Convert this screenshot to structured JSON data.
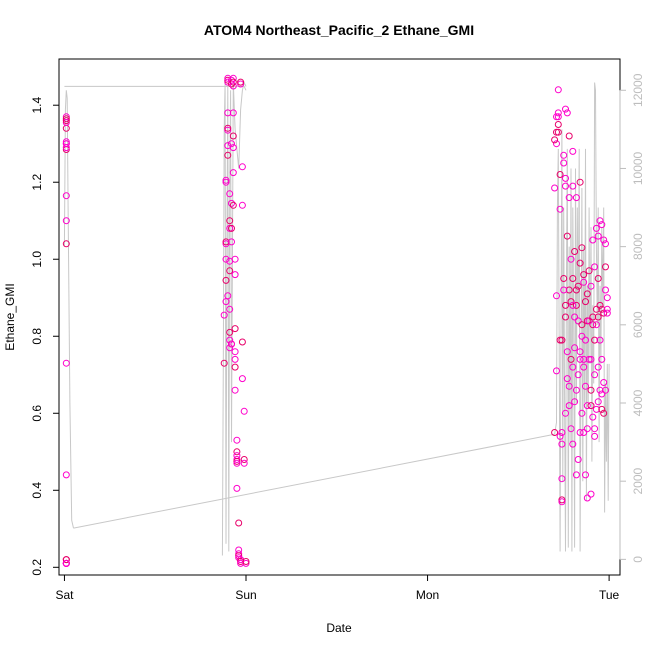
{
  "chart_data": {
    "type": "scatter",
    "title": "ATOM4 Northeast_Pacific_2 Ethane_GMI",
    "xlabel": "Date",
    "ylabel": "Ethane_GMI",
    "x_ticks": [
      {
        "label": "Sat",
        "day": 0
      },
      {
        "label": "Sun",
        "day": 1
      },
      {
        "label": "Mon",
        "day": 2
      },
      {
        "label": "Tue",
        "day": 3
      }
    ],
    "xlim_days": [
      -0.03,
      3.06
    ],
    "ylim": [
      0.18,
      1.52
    ],
    "y_ticks": [
      0.2,
      0.4,
      0.6,
      0.8,
      1.0,
      1.2,
      1.4
    ],
    "y_tick_labels": [
      "0.2",
      "0.4",
      "0.6",
      "0.8",
      "1.0",
      "1.2",
      "1.4"
    ],
    "y2lim": [
      -400,
      12800
    ],
    "y2_ticks": [
      0,
      2000,
      4000,
      6000,
      8000,
      10000,
      12000
    ],
    "y2_tick_labels": [
      "0",
      "2000",
      "4000",
      "6000",
      "8000",
      "10000",
      "12000"
    ],
    "grid": false,
    "colors": {
      "points": "#ff00cc",
      "points_alt": "#e8006a",
      "altitude_line": "#c8c8c8",
      "axis": "#000000",
      "right_axis": "#bdbdbd"
    },
    "series": [
      {
        "kind": "points",
        "x_days": [
          0.01,
          0.01,
          0.01,
          0.01,
          0.01,
          0.01,
          0.01,
          0.01,
          0.01,
          0.01,
          0.01,
          0.01,
          0.01,
          0.01,
          0.01,
          0.01,
          0.01,
          0.01,
          0.01,
          0.01,
          0.01,
          0.01,
          0.01,
          0.01
        ],
        "y": [
          0.21,
          0.21,
          0.21,
          0.22,
          0.44,
          0.73,
          1.04,
          1.1,
          1.165,
          1.285,
          1.3,
          1.305,
          1.34,
          1.355,
          1.37,
          1.365,
          0.21,
          0.21,
          0.22,
          1.3,
          1.29,
          1.36,
          0.21,
          0.21
        ]
      },
      {
        "kind": "points",
        "x_days": [
          0.88,
          0.88,
          0.89,
          0.89,
          0.89,
          0.89,
          0.89,
          0.89,
          0.89,
          0.9,
          0.9,
          0.9,
          0.9,
          0.9,
          0.9,
          0.9,
          0.9,
          0.9,
          0.91,
          0.91,
          0.91,
          0.91,
          0.91,
          0.91,
          0.91,
          0.91,
          0.91,
          0.92,
          0.92,
          0.92,
          0.92,
          0.92,
          0.92,
          0.92,
          0.92,
          0.93,
          0.93,
          0.93,
          0.93,
          0.93,
          0.93,
          0.93,
          0.93,
          0.94,
          0.94,
          0.94,
          0.94,
          0.94,
          0.94,
          0.94,
          0.95,
          0.95,
          0.95,
          0.95,
          0.95,
          0.95,
          0.95,
          0.96,
          0.96,
          0.96,
          0.96,
          0.96,
          0.97,
          0.97,
          0.97,
          0.97,
          0.97,
          0.98,
          0.98,
          0.98,
          0.98,
          0.99,
          0.99,
          0.99,
          1.0,
          1.0
        ],
        "y": [
          0.73,
          0.855,
          0.89,
          0.945,
          1.0,
          1.04,
          1.045,
          1.2,
          1.205,
          1.27,
          1.295,
          1.335,
          1.34,
          1.38,
          1.46,
          1.465,
          1.47,
          0.905,
          0.97,
          0.995,
          1.08,
          1.1,
          1.17,
          0.87,
          0.81,
          0.79,
          0.77,
          0.78,
          0.78,
          1.045,
          1.08,
          1.145,
          1.3,
          1.455,
          1.465,
          1.47,
          1.46,
          1.45,
          1.38,
          1.32,
          1.29,
          1.225,
          1.14,
          1.0,
          0.96,
          0.82,
          0.76,
          0.74,
          0.72,
          0.66,
          0.53,
          0.5,
          0.49,
          0.48,
          0.475,
          0.47,
          0.405,
          0.315,
          0.245,
          0.235,
          0.23,
          0.225,
          0.22,
          0.215,
          0.21,
          1.455,
          1.46,
          1.24,
          1.14,
          0.785,
          0.69,
          0.605,
          0.48,
          0.47,
          0.21,
          0.215
        ]
      },
      {
        "kind": "points",
        "x_days": [
          2.7,
          2.7,
          2.71,
          2.71,
          2.71,
          2.71,
          2.72,
          2.72,
          2.72,
          2.73,
          2.73,
          2.73,
          2.74,
          2.74,
          2.74,
          2.74,
          2.75,
          2.75,
          2.75,
          2.76,
          2.76,
          2.76,
          2.76,
          2.77,
          2.77,
          2.77,
          2.78,
          2.78,
          2.78,
          2.79,
          2.79,
          2.79,
          2.8,
          2.8,
          2.8,
          2.8,
          2.81,
          2.81,
          2.81,
          2.82,
          2.82,
          2.82,
          2.83,
          2.83,
          2.83,
          2.84,
          2.84,
          2.84,
          2.85,
          2.85,
          2.85,
          2.86,
          2.86,
          2.86,
          2.87,
          2.87,
          2.87,
          2.88,
          2.88,
          2.88,
          2.89,
          2.89,
          2.9,
          2.9,
          2.9,
          2.91,
          2.91,
          2.91,
          2.92,
          2.92,
          2.92,
          2.93,
          2.93,
          2.93,
          2.94,
          2.94,
          2.94,
          2.95,
          2.95,
          2.95,
          2.96,
          2.96,
          2.96,
          2.97,
          2.97,
          2.97,
          2.98,
          2.98,
          2.99,
          2.99,
          2.7,
          2.71,
          2.72,
          2.73,
          2.74,
          2.75,
          2.76,
          2.77,
          2.78,
          2.79,
          2.8,
          2.81,
          2.82,
          2.83,
          2.84,
          2.85,
          2.86,
          2.87,
          2.88,
          2.89,
          2.9,
          2.91,
          2.92,
          2.93,
          2.94,
          2.95,
          2.96,
          2.97,
          2.98,
          2.99,
          2.72,
          2.74,
          2.76,
          2.78,
          2.8,
          2.82,
          2.84,
          2.86,
          2.88,
          2.9,
          2.92,
          2.94,
          2.96,
          2.98
        ],
        "y": [
          0.55,
          1.185,
          1.3,
          1.33,
          0.905,
          0.71,
          1.33,
          1.38,
          1.44,
          1.22,
          1.13,
          0.54,
          0.79,
          0.52,
          0.43,
          0.375,
          1.27,
          1.25,
          0.95,
          1.19,
          1.21,
          0.85,
          0.6,
          1.38,
          1.06,
          0.69,
          1.16,
          0.92,
          0.62,
          1.0,
          0.74,
          0.56,
          1.19,
          0.95,
          0.72,
          0.52,
          1.02,
          0.85,
          0.63,
          0.88,
          0.66,
          0.44,
          0.93,
          0.7,
          0.48,
          0.99,
          0.76,
          0.55,
          1.03,
          0.8,
          0.6,
          0.96,
          0.72,
          0.55,
          0.89,
          0.67,
          0.44,
          0.84,
          0.62,
          0.38,
          0.97,
          0.74,
          0.93,
          0.66,
          0.39,
          1.05,
          0.83,
          0.59,
          0.98,
          0.79,
          0.56,
          1.08,
          0.87,
          0.61,
          1.06,
          0.85,
          0.63,
          1.1,
          0.88,
          0.66,
          1.09,
          0.87,
          0.65,
          1.05,
          0.86,
          0.68,
          1.04,
          0.98,
          0.87,
          0.86,
          1.31,
          1.37,
          1.37,
          0.79,
          0.55,
          0.92,
          0.88,
          0.76,
          0.67,
          0.89,
          0.88,
          0.77,
          0.92,
          0.84,
          0.74,
          0.83,
          0.74,
          0.79,
          0.91,
          0.84,
          0.74,
          0.85,
          0.7,
          0.83,
          0.95,
          0.79,
          0.74,
          0.6,
          0.92,
          0.9,
          1.35,
          0.37,
          1.39,
          1.32,
          1.28,
          1.16,
          1.2,
          0.94,
          0.56,
          0.62,
          0.54,
          0.72,
          0.61,
          0.66
        ]
      }
    ],
    "altitude_series": {
      "name": "",
      "axis": "right",
      "segments": [
        {
          "x_days": [
            0.0,
            0.005,
            0.01,
            0.015,
            0.02,
            0.03,
            0.04,
            0.05
          ],
          "y2": [
            8000,
            11500,
            12000,
            11800,
            9000,
            4000,
            1000,
            800
          ]
        },
        {
          "x_days": [
            0.0,
            0.99,
            1.0
          ],
          "y2": [
            12100,
            12100,
            12000
          ]
        },
        {
          "x_days": [
            0.05,
            2.7
          ],
          "y2": [
            800,
            3200
          ]
        },
        {
          "x_days": [
            0.87,
            0.875,
            0.88,
            0.885,
            0.89,
            0.895,
            0.9,
            0.905,
            0.91,
            0.915,
            0.92,
            0.93,
            0.94,
            0.95,
            0.96,
            0.97,
            0.98,
            0.99,
            1.0
          ],
          "y2": [
            100,
            5000,
            11000,
            12200,
            400,
            8000,
            12100,
            200,
            9500,
            12000,
            3000,
            12200,
            11000,
            10500,
            10000,
            11500,
            12000,
            12200,
            12100
          ]
        },
        {
          "x_days": [
            2.7,
            2.71,
            2.715,
            2.72,
            2.73,
            2.735,
            2.74,
            2.745,
            2.75,
            2.755,
            2.76,
            2.765,
            2.77,
            2.775,
            2.78,
            2.785,
            2.79,
            2.795,
            2.8,
            2.805,
            2.81,
            2.815,
            2.82,
            2.825,
            2.83,
            2.835,
            2.84,
            2.845,
            2.85,
            2.855,
            2.86,
            2.865,
            2.87,
            2.875,
            2.88,
            2.885,
            2.89,
            2.895,
            2.9,
            2.905,
            2.91,
            2.915,
            2.92,
            2.925,
            2.93,
            2.935,
            2.94,
            2.945,
            2.95,
            2.955,
            2.96,
            2.965,
            2.97,
            2.975,
            2.98,
            2.985,
            2.99,
            2.995,
            3.0
          ],
          "y2": [
            3200,
            3500,
            9000,
            10500,
            200,
            6000,
            11000,
            2000,
            9000,
            4000,
            200,
            7000,
            10500,
            300,
            8000,
            3000,
            10000,
            200,
            9000,
            6000,
            300,
            10000,
            4000,
            9000,
            6000,
            10500,
            200,
            5000,
            9500,
            2000,
            8000,
            4000,
            10500,
            1500,
            7000,
            4000,
            9000,
            5000,
            8500,
            2500,
            6500,
            4500,
            12200,
            12000,
            8000,
            6000,
            9000,
            3000,
            7000,
            5000,
            8500,
            6500,
            9000,
            1200,
            4500,
            2500,
            5000,
            1500,
            5000
          ]
        }
      ]
    }
  }
}
